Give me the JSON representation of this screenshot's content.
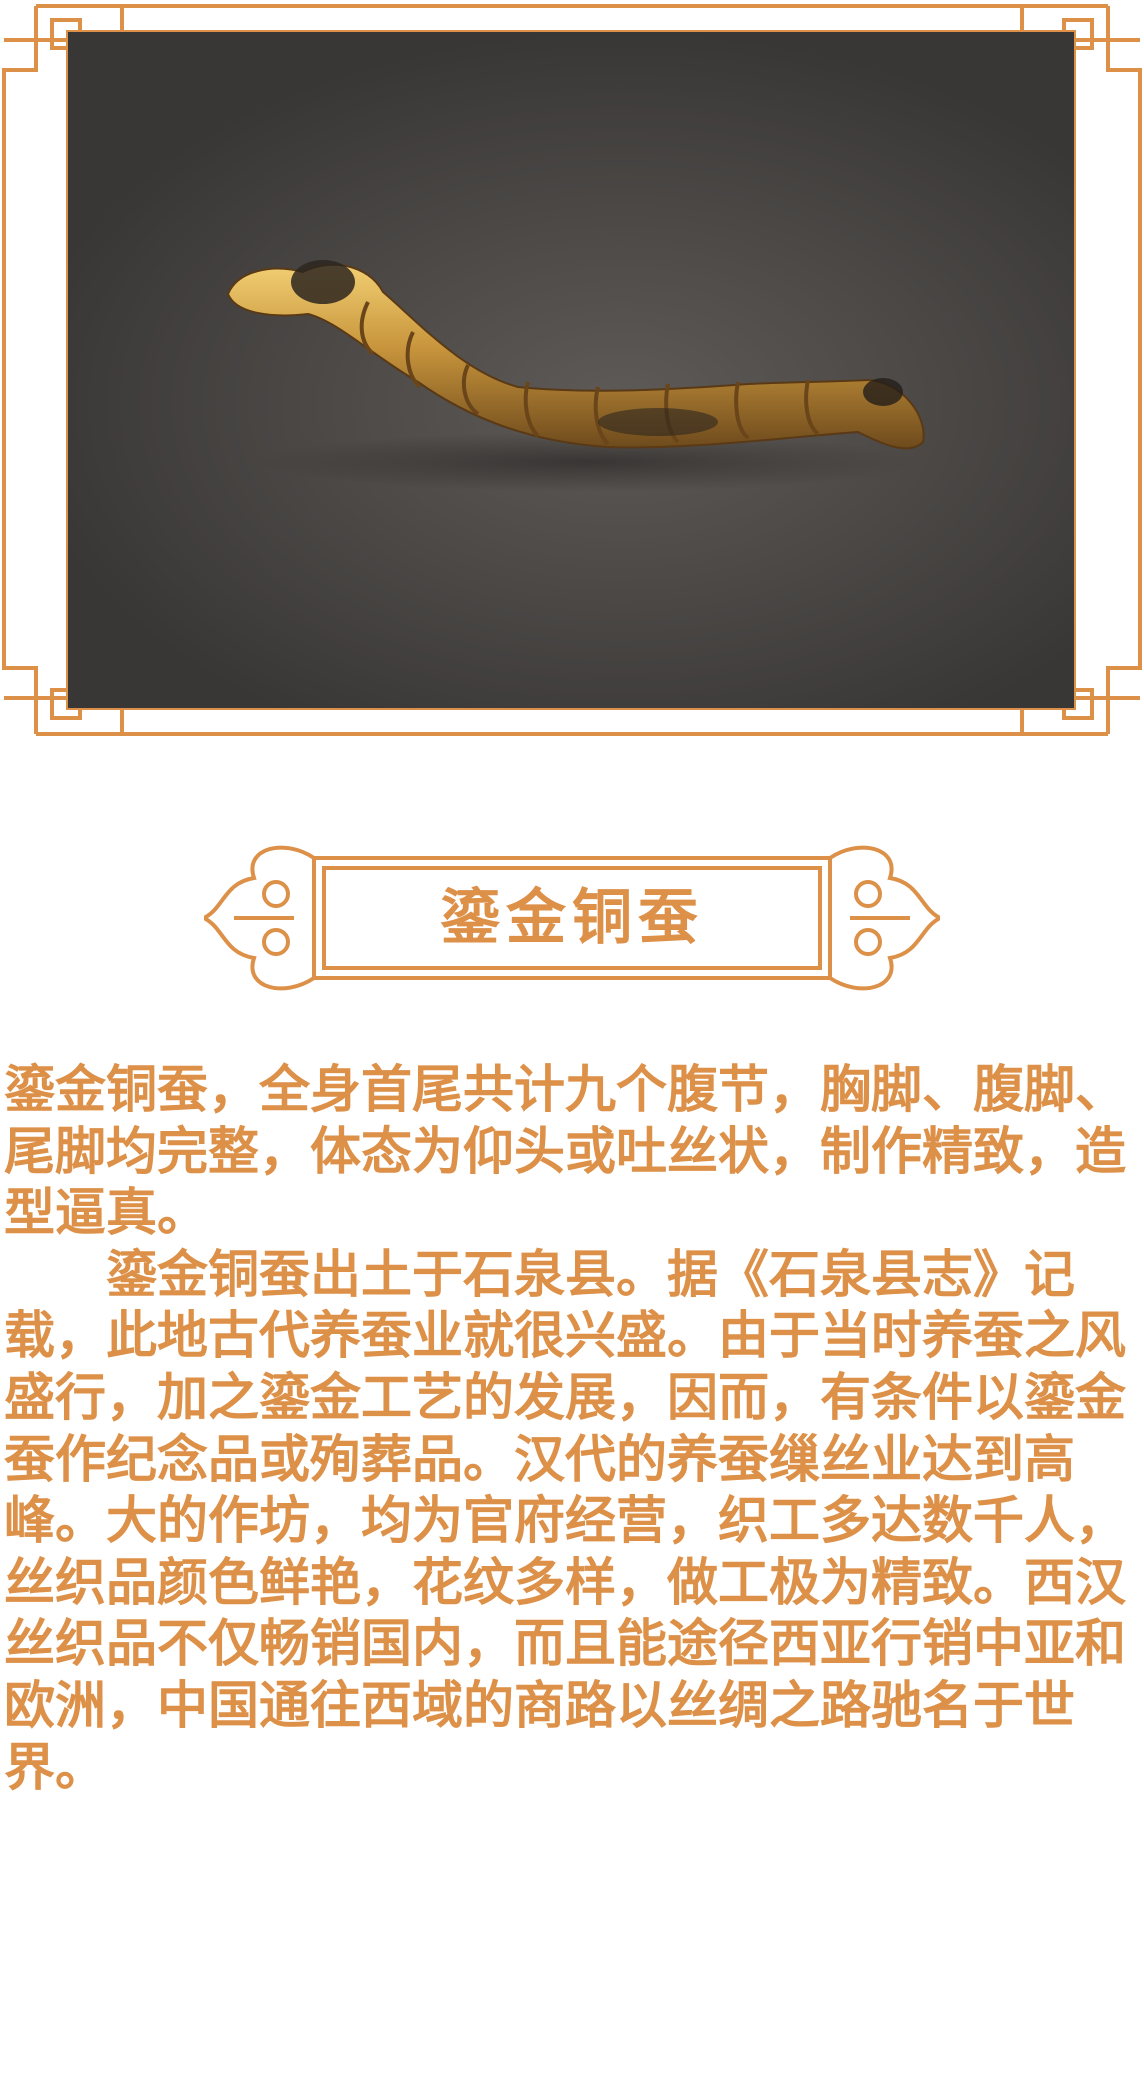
{
  "colors": {
    "accent": "#dd9048",
    "photo_bg": "#4a4745",
    "gold": "#c8953c"
  },
  "image": {
    "name": "gilt-bronze-silkworm-photo"
  },
  "title": "鎏金铜蚕",
  "paragraphs": [
    "鎏金铜蚕，全身首尾共计九个腹节，胸脚、腹脚、尾脚均完整，体态为仰头或吐丝状，制作精致，造型逼真。",
    "鎏金铜蚕出土于石泉县。据《石泉县志》记载，此地古代养蚕业就很兴盛。由于当时养蚕之风盛行，加之鎏金工艺的发展，因而，有条件以鎏金蚕作纪念品或殉葬品。汉代的养蚕缫丝业达到高峰。大的作坊，均为官府经营，织工多达数千人，丝织品颜色鲜艳，花纹多样，做工极为精致。西汉丝织品不仅畅销国内，而且能途径西亚行销中亚和欧洲，中国通往西域的商路以丝绸之路驰名于世界。"
  ]
}
